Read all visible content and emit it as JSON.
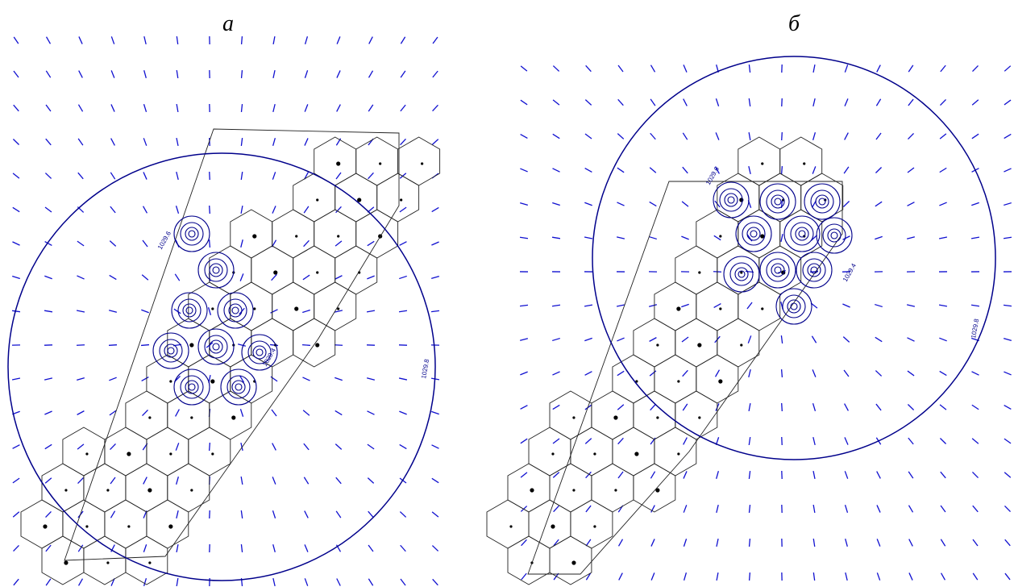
{
  "panels": [
    {
      "label": "а",
      "contour_labels": [
        "1029.8",
        "1029.6",
        "1029.4"
      ]
    },
    {
      "label": "б",
      "contour_labels": [
        "1029.8",
        "1029.6",
        "1029.4"
      ]
    }
  ]
}
